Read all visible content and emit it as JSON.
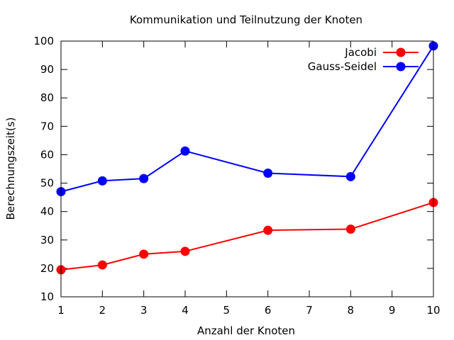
{
  "chart_data": {
    "type": "line",
    "title": "Kommunikation und Teilnutzung der Knoten",
    "xlabel": "Anzahl der Knoten",
    "ylabel": "Berechnungszeit(s)",
    "xlim": [
      1,
      10
    ],
    "ylim": [
      10,
      100
    ],
    "xticks": [
      1,
      2,
      3,
      4,
      5,
      6,
      7,
      8,
      9,
      10
    ],
    "yticks": [
      10,
      20,
      30,
      40,
      50,
      60,
      70,
      80,
      90,
      100
    ],
    "grid": false,
    "legend_position": "top-right",
    "x": [
      1,
      2,
      3,
      4,
      6,
      8,
      10
    ],
    "series": [
      {
        "name": "Jacobi",
        "color": "#ff0000",
        "values": [
          19.5,
          21.2,
          25.0,
          26.0,
          33.4,
          33.8,
          43.2
        ]
      },
      {
        "name": "Gauss-Seidel",
        "color": "#0000ff",
        "values": [
          47.0,
          50.8,
          51.6,
          61.3,
          53.5,
          52.3,
          98.3
        ]
      }
    ]
  }
}
